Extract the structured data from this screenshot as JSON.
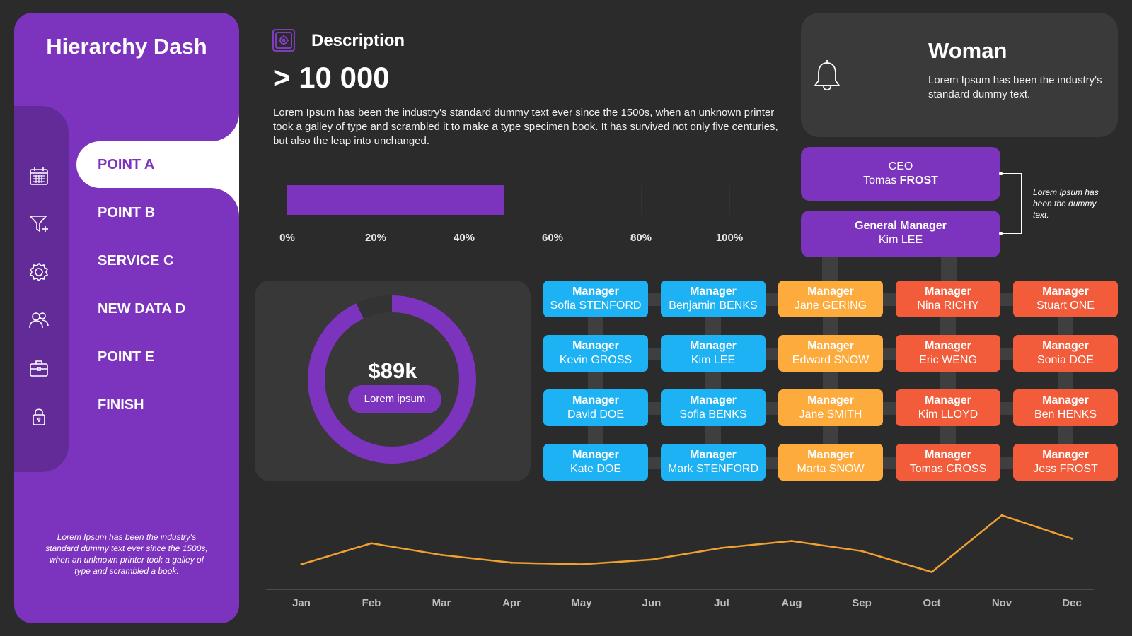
{
  "sidebar": {
    "brand": "Hierarchy Dash",
    "nav": [
      {
        "label": "POINT A",
        "icon": "calendar-icon",
        "active": true
      },
      {
        "label": "POINT B",
        "icon": "funnel-icon",
        "active": false
      },
      {
        "label": "SERVICE C",
        "icon": "gear-icon",
        "active": false
      },
      {
        "label": "NEW DATA D",
        "icon": "users-icon",
        "active": false
      },
      {
        "label": "POINT E",
        "icon": "briefcase-icon",
        "active": false
      },
      {
        "label": "FINISH",
        "icon": "lock-icon",
        "active": false
      }
    ],
    "note": "Lorem Ipsum has been the industry's standard dummy text ever since the 1500s, when an unknown printer took a galley of type and scrambled  a book."
  },
  "description": {
    "icon": "safe-icon",
    "title": "Description",
    "big_number": "> 10 000",
    "text": "Lorem Ipsum has been the industry's standard dummy text ever since the 1500s, when an unknown printer took a galley of type and scrambled it to make a type specimen book. It has survived not only five centuries, but also the leap into unchanged."
  },
  "progress": {
    "value_percent": 49,
    "ticks": [
      "0%",
      "20%",
      "40%",
      "60%",
      "80%",
      "100%"
    ],
    "color": "#7c33bd"
  },
  "donut": {
    "value": "$89k",
    "label": "Lorem ipsum",
    "fraction": 0.93,
    "color": "#7c33bd"
  },
  "woman_card": {
    "icon": "bell-icon",
    "title": "Woman",
    "text": "Lorem Ipsum has been the industry's standard dummy text."
  },
  "org": {
    "ceo": {
      "role": "CEO",
      "first": "Tomas",
      "last": "FROST"
    },
    "gm": {
      "role": "General Manager",
      "name": "Kim LEE"
    },
    "note": "Lorem Ipsum has been the dummy text.",
    "columns": [
      {
        "color": "#1db2f3",
        "managers": [
          {
            "role": "Manager",
            "name": "Sofia STENFORD"
          },
          {
            "role": "Manager",
            "name": "Kevin GROSS"
          },
          {
            "role": "Manager",
            "name": "David DOE"
          },
          {
            "role": "Manager",
            "name": "Kate DOE"
          }
        ]
      },
      {
        "color": "#1db2f3",
        "managers": [
          {
            "role": "Manager",
            "name": "Benjamin BENKS"
          },
          {
            "role": "Manager",
            "name": "Kim LEE"
          },
          {
            "role": "Manager",
            "name": "Sofia BENKS"
          },
          {
            "role": "Manager",
            "name": "Mark STENFORD"
          }
        ]
      },
      {
        "color": "#fdab3d",
        "managers": [
          {
            "role": "Manager",
            "name": "Jane GERING"
          },
          {
            "role": "Manager",
            "name": "Edward SNOW"
          },
          {
            "role": "Manager",
            "name": "Jane  SMITH"
          },
          {
            "role": "Manager",
            "name": "Marta SNOW"
          }
        ]
      },
      {
        "color": "#f25c3b",
        "managers": [
          {
            "role": "Manager",
            "name": "Nina RICHY"
          },
          {
            "role": "Manager",
            "name": "Eric WENG"
          },
          {
            "role": "Manager",
            "name": "Kim LLOYD"
          },
          {
            "role": "Manager",
            "name": "Tomas CROSS"
          }
        ]
      },
      {
        "color": "#f25c3b",
        "managers": [
          {
            "role": "Manager",
            "name": "Stuart ONE"
          },
          {
            "role": "Manager",
            "name": "Sonia DOE"
          },
          {
            "role": "Manager",
            "name": "Ben HENKS"
          },
          {
            "role": "Manager",
            "name": "Jess FROST"
          }
        ]
      }
    ]
  },
  "chart_data": {
    "type": "line",
    "categories": [
      "Jan",
      "Feb",
      "Mar",
      "Apr",
      "May",
      "Jun",
      "Jul",
      "Aug",
      "Sep",
      "Oct",
      "Nov",
      "Dec"
    ],
    "values": [
      25,
      52,
      37,
      27,
      25,
      31,
      46,
      55,
      42,
      15,
      88,
      58
    ],
    "ylim": [
      0,
      100
    ],
    "color": "#f0a030",
    "grid": false
  }
}
